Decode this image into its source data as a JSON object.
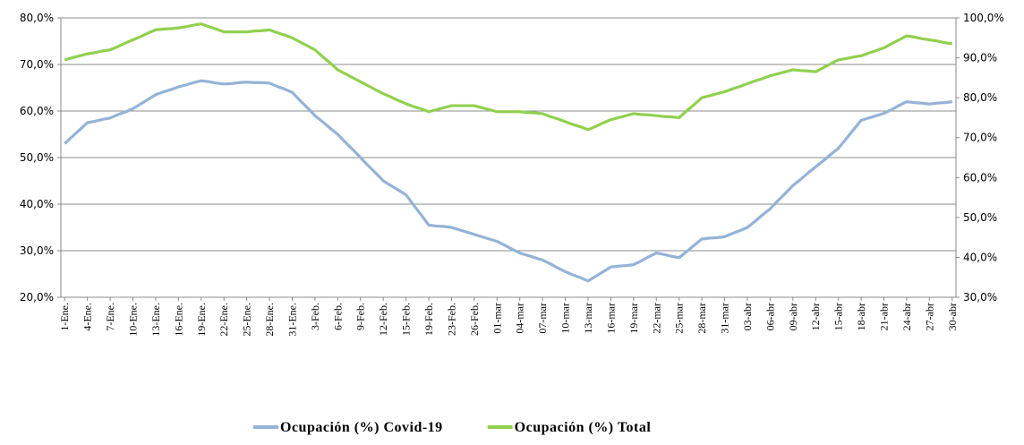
{
  "chart_data": {
    "type": "line",
    "categories": [
      "1-Ene.",
      null,
      null,
      "4-Ene.",
      null,
      null,
      "7-Ene.",
      null,
      null,
      "10-Ene.",
      null,
      null,
      "13-Ene.",
      null,
      null,
      "16-Ene.",
      null,
      null,
      "19-Ene.",
      null,
      null,
      "22-Ene.",
      null,
      null,
      "25-Ene.",
      null,
      null,
      "28-Ene.",
      null,
      null,
      "31-Ene.",
      null,
      null,
      "3-Feb.",
      null,
      null,
      "6-Feb.",
      null,
      null,
      "9-Feb.",
      null,
      null,
      "12-Feb.",
      null,
      null,
      "15-Feb.",
      null,
      null,
      "19-Feb.",
      null,
      null,
      "23-Feb.",
      null,
      null,
      "26-Feb.",
      null,
      null,
      "01-mar",
      null,
      null,
      "04-mar",
      null,
      null,
      "07-mar",
      null,
      null,
      "10-mar",
      null,
      null,
      "13-mar",
      null,
      null,
      "16-mar",
      null,
      null,
      "19-mar",
      null,
      null,
      "22-mar",
      null,
      null,
      "25-mar",
      null,
      null,
      "28-mar",
      null,
      null,
      "31-mar",
      null,
      null,
      "03-abr",
      null,
      null,
      "06-abr",
      null,
      null,
      "09-abr",
      null,
      null,
      "12-abr",
      null,
      null,
      "15-abr",
      null,
      null,
      "18-abr",
      null,
      null,
      "21-abr",
      null,
      null,
      "24-abr",
      null,
      null,
      "27-abr",
      null,
      null,
      "30-abr"
    ],
    "series": [
      {
        "name": "Ocupación (%) Covid-19",
        "color": "#95b3d7",
        "values": [
          53.0,
          54.5,
          56.0,
          57.5,
          57.8,
          58.2,
          58.5,
          59.2,
          59.8,
          60.5,
          61.5,
          62.5,
          63.5,
          64.1,
          64.6,
          65.2,
          65.6,
          66.1,
          66.5,
          66.3,
          66.0,
          65.8,
          65.9,
          66.1,
          66.2,
          66.1,
          66.1,
          66.0,
          65.3,
          64.7,
          64.0,
          62.3,
          60.7,
          59.0,
          57.7,
          56.3,
          55.0,
          53.3,
          51.7,
          50.0,
          48.3,
          46.7,
          45.0,
          44.0,
          43.0,
          42.0,
          39.8,
          37.7,
          35.5,
          35.3,
          35.2,
          35.0,
          34.5,
          34.0,
          33.5,
          33.0,
          32.5,
          32.0,
          31.2,
          30.3,
          29.5,
          29.0,
          28.5,
          28.0,
          27.2,
          26.3,
          25.5,
          24.8,
          24.2,
          23.5,
          24.5,
          25.5,
          26.5,
          26.7,
          26.8,
          27.0,
          27.8,
          28.7,
          29.5,
          29.2,
          28.8,
          28.5,
          29.8,
          31.2,
          32.5,
          32.7,
          32.8,
          33.0,
          33.7,
          34.3,
          35.0,
          36.3,
          37.7,
          39.0,
          40.7,
          42.3,
          44.0,
          45.3,
          46.7,
          48.0,
          49.3,
          50.7,
          52.0,
          54.0,
          56.0,
          58.0,
          58.5,
          59.0,
          59.5,
          60.3,
          61.2,
          62.0,
          61.8,
          61.7,
          61.5,
          61.7,
          61.8,
          62.0
        ]
      },
      {
        "name": "Ocupación (%) Total",
        "color": "#92d050",
        "axis": "y2",
        "values": [
          89.5,
          90.0,
          90.5,
          91.0,
          91.3,
          91.7,
          92.0,
          92.8,
          93.7,
          94.5,
          95.3,
          96.2,
          97.0,
          97.2,
          97.3,
          97.5,
          97.8,
          98.2,
          98.5,
          97.8,
          97.2,
          96.5,
          96.5,
          96.5,
          96.5,
          96.7,
          96.8,
          97.0,
          96.3,
          95.7,
          95.0,
          94.0,
          93.0,
          92.0,
          90.3,
          88.7,
          87.0,
          86.0,
          85.0,
          84.0,
          83.0,
          82.0,
          81.0,
          80.2,
          79.3,
          78.5,
          77.8,
          77.2,
          76.5,
          77.0,
          77.5,
          78.0,
          78.0,
          78.0,
          78.0,
          77.5,
          77.0,
          76.5,
          76.5,
          76.5,
          76.5,
          76.3,
          76.2,
          76.0,
          75.3,
          74.7,
          74.0,
          73.3,
          72.7,
          72.0,
          72.8,
          73.7,
          74.5,
          75.0,
          75.5,
          76.0,
          75.8,
          75.7,
          75.5,
          75.3,
          75.2,
          75.0,
          76.7,
          78.3,
          80.0,
          80.5,
          81.0,
          81.5,
          82.2,
          82.8,
          83.5,
          84.2,
          84.8,
          85.5,
          86.0,
          86.5,
          87.0,
          86.8,
          86.7,
          86.5,
          87.5,
          88.5,
          89.5,
          89.8,
          90.2,
          90.5,
          91.2,
          91.8,
          92.5,
          93.5,
          94.5,
          95.5,
          95.2,
          94.8,
          94.5,
          94.2,
          93.8,
          93.5
        ]
      }
    ],
    "ylim": [
      20,
      80
    ],
    "yticks": [
      {
        "value": 20,
        "label": "20,0%"
      },
      {
        "value": 30,
        "label": "30,0%"
      },
      {
        "value": 40,
        "label": "40,0%"
      },
      {
        "value": 50,
        "label": "50,0%"
      },
      {
        "value": 60,
        "label": "60,0%"
      },
      {
        "value": 70,
        "label": "70,0%"
      },
      {
        "value": 80,
        "label": "80,0%"
      }
    ],
    "y2lim": [
      30,
      100
    ],
    "y2ticks": [
      {
        "value": 30,
        "label": "30,0%"
      },
      {
        "value": 40,
        "label": "40,0%"
      },
      {
        "value": 50,
        "label": "50,0%"
      },
      {
        "value": 60,
        "label": "60,0%"
      },
      {
        "value": 70,
        "label": "70,0%"
      },
      {
        "value": 80,
        "label": "80,0%"
      },
      {
        "value": 90,
        "label": "90,0%"
      },
      {
        "value": 100,
        "label": "100,0%"
      }
    ],
    "grid": true,
    "legend": "bottom"
  }
}
